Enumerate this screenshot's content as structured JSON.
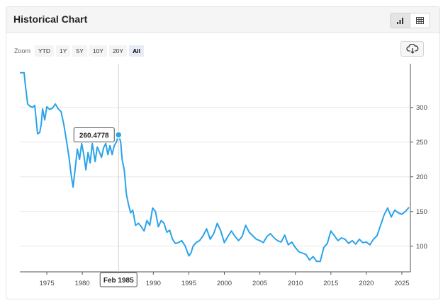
{
  "header": {
    "title": "Historical Chart"
  },
  "view_toggle": [
    {
      "name": "chart-view-button",
      "icon": "bar-chart-icon",
      "active": true
    },
    {
      "name": "table-view-button",
      "icon": "table-icon",
      "active": false
    }
  ],
  "zoom": {
    "label": "Zoom",
    "options": [
      "YTD",
      "1Y",
      "5Y",
      "10Y",
      "20Y",
      "All"
    ],
    "selected": "All"
  },
  "export_icon": "cloud-download-icon",
  "colors": {
    "line": "#2aa3ea",
    "grid": "#e8e8e8",
    "accent_zoom": "#e6ebf5"
  },
  "tooltip": {
    "value": "260.4778",
    "date": "Feb 1985"
  },
  "chart_data": {
    "type": "line",
    "title": "",
    "xlabel": "",
    "ylabel": "",
    "xlim": [
      1971.2,
      2026.2
    ],
    "ylim": [
      63,
      363
    ],
    "y_axis_position": "right",
    "grid": true,
    "x_ticks": [
      "1975",
      "1980",
      "1985",
      "1990",
      "1995",
      "2000",
      "2005",
      "2010",
      "2015",
      "2020",
      "2025"
    ],
    "y_ticks": [
      "100",
      "150",
      "200",
      "250",
      "300"
    ],
    "highlight": {
      "x": 1985.1,
      "y": 260.4778
    },
    "series": [
      {
        "x": [
          1971.2,
          1971.8,
          1972.0,
          1972.3,
          1972.6,
          1973.0,
          1973.3,
          1973.7,
          1974.0,
          1974.2,
          1974.4,
          1974.7,
          1975.0,
          1975.4,
          1975.8,
          1976.2,
          1976.6,
          1977.0,
          1977.4,
          1977.8,
          1978.1,
          1978.4,
          1978.7,
          1979.0,
          1979.3,
          1979.6,
          1979.9,
          1980.2,
          1980.5,
          1980.8,
          1981.1,
          1981.4,
          1981.8,
          1982.1,
          1982.4,
          1982.7,
          1983.0,
          1983.3,
          1983.6,
          1983.9,
          1984.2,
          1984.5,
          1984.8,
          1985.1,
          1985.4,
          1985.6,
          1985.9,
          1986.2,
          1986.5,
          1986.8,
          1987.1,
          1987.5,
          1987.9,
          1988.3,
          1988.7,
          1989.1,
          1989.5,
          1989.9,
          1990.3,
          1990.7,
          1991.1,
          1991.5,
          1991.9,
          1992.3,
          1992.7,
          1993.1,
          1993.5,
          1994.0,
          1994.5,
          1995.0,
          1995.3,
          1995.6,
          1996.0,
          1996.5,
          1997.0,
          1997.5,
          1998.0,
          1998.5,
          1999.0,
          1999.5,
          2000.0,
          2000.5,
          2001.0,
          2001.5,
          2002.0,
          2002.5,
          2003.0,
          2003.5,
          2004.0,
          2004.5,
          2005.0,
          2005.5,
          2006.0,
          2006.5,
          2007.0,
          2007.5,
          2008.0,
          2008.5,
          2009.0,
          2009.5,
          2010.0,
          2010.5,
          2011.0,
          2011.5,
          2012.0,
          2012.5,
          2013.0,
          2013.5,
          2014.0,
          2014.5,
          2015.0,
          2015.5,
          2016.0,
          2016.5,
          2017.0,
          2017.5,
          2018.0,
          2018.5,
          2019.0,
          2019.5,
          2020.0,
          2020.5,
          2021.0,
          2021.5,
          2022.0,
          2022.5,
          2023.0,
          2023.5,
          2024.0,
          2024.5,
          2025.0,
          2025.5,
          2026.0
        ],
        "values": [
          350,
          350,
          330,
          305,
          302,
          300,
          303,
          262,
          264,
          275,
          298,
          282,
          301,
          297,
          299,
          305,
          298,
          294,
          275,
          250,
          230,
          205,
          185,
          212,
          240,
          225,
          248,
          232,
          210,
          235,
          220,
          248,
          222,
          243,
          236,
          228,
          242,
          248,
          232,
          245,
          232,
          245,
          250,
          260.4778,
          250,
          225,
          210,
          175,
          160,
          148,
          152,
          130,
          133,
          128,
          122,
          137,
          130,
          155,
          150,
          128,
          137,
          133,
          120,
          123,
          110,
          104,
          105,
          108,
          100,
          86,
          90,
          100,
          105,
          108,
          115,
          125,
          110,
          118,
          133,
          122,
          105,
          114,
          122,
          114,
          108,
          114,
          130,
          120,
          115,
          110,
          108,
          105,
          114,
          118,
          112,
          108,
          106,
          116,
          102,
          106,
          98,
          92,
          90,
          88,
          80,
          85,
          78,
          78,
          98,
          104,
          122,
          115,
          108,
          112,
          110,
          104,
          108,
          103,
          110,
          105,
          106,
          102,
          110,
          115,
          130,
          145,
          155,
          142,
          152,
          148,
          146,
          150,
          156
        ]
      }
    ]
  }
}
